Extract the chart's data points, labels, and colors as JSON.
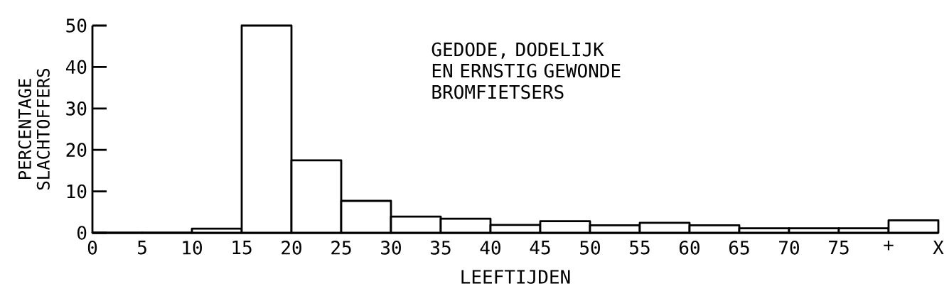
{
  "chart_data": {
    "type": "histogram",
    "title": "GEDODE, DODELIJK EN ERNSTIG GEWONDE BROMFIETSERS",
    "xlabel": "LEEFTIJDEN",
    "ylabel": "PERCENTAGE SLACHTOFFERS",
    "bins": [
      0,
      5,
      10,
      15,
      20,
      25,
      30,
      35,
      40,
      45,
      50,
      55,
      60,
      65,
      70,
      75,
      80,
      85
    ],
    "values": [
      0,
      0,
      1,
      50,
      17.5,
      7.7,
      3.9,
      3.4,
      1.9,
      2.8,
      1.8,
      2.4,
      1.8,
      1.1,
      1.1,
      1.1,
      3.0
    ],
    "color": "#ffffff",
    "xlim": [
      0,
      85
    ],
    "ylim": [
      0,
      50
    ],
    "xticks": [
      0,
      5,
      10,
      15,
      20,
      25,
      30,
      35,
      40,
      45,
      50,
      55,
      60,
      65,
      70,
      75,
      {
        "value": 80,
        "label": "+"
      },
      {
        "value": 85,
        "label": "X"
      }
    ],
    "yticks": [
      0,
      10,
      20,
      30,
      40,
      50
    ]
  }
}
